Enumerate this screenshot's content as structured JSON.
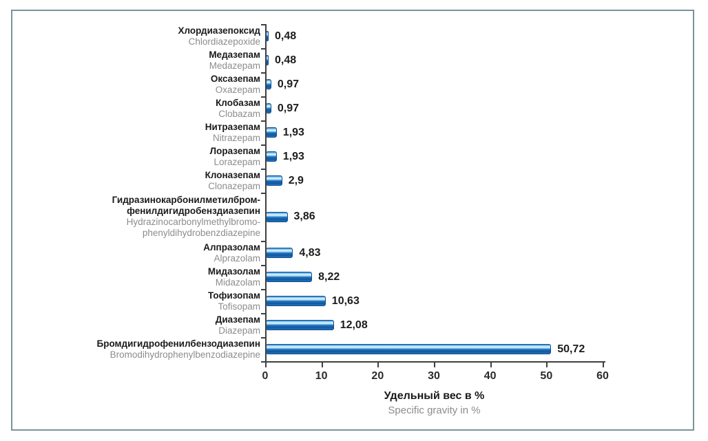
{
  "frame": {
    "border_color": "#78939b",
    "background": "#ffffff"
  },
  "axis": {
    "line_color": "#3f3f3f",
    "tick_label_color": "#2b2b2b"
  },
  "text_colors": {
    "label_ru": "#1a1a1a",
    "label_en": "#8c8c8c",
    "value": "#1c1c1c"
  },
  "chart_data": {
    "type": "bar",
    "orientation": "horizontal",
    "title": "",
    "xlabel_ru": "Удельный вес в %",
    "xlabel_en": "Specific gravity in %",
    "xlim": [
      0,
      60
    ],
    "xticks": [
      "0",
      "10",
      "20",
      "30",
      "40",
      "50",
      "60"
    ],
    "grid": false,
    "legend": null,
    "bar_color_main": "#1b67b3",
    "bar_color_highlight": "#e0f6ff",
    "bar_color_border": "#0a4a8e",
    "categories": [
      {
        "label_ru": [
          "Хлордиазепоксид"
        ],
        "label_en": [
          "Chlordiazepoxide"
        ],
        "value": 0.48,
        "value_display": "0,48"
      },
      {
        "label_ru": [
          "Медазепам"
        ],
        "label_en": [
          "Medazepam"
        ],
        "value": 0.48,
        "value_display": "0,48"
      },
      {
        "label_ru": [
          "Оксазепам"
        ],
        "label_en": [
          "Oxazepam"
        ],
        "value": 0.97,
        "value_display": "0,97"
      },
      {
        "label_ru": [
          "Клобазам"
        ],
        "label_en": [
          "Clobazam"
        ],
        "value": 0.97,
        "value_display": "0,97"
      },
      {
        "label_ru": [
          "Нитразепам"
        ],
        "label_en": [
          "Nitrazepam"
        ],
        "value": 1.93,
        "value_display": "1,93"
      },
      {
        "label_ru": [
          "Лоразепам"
        ],
        "label_en": [
          "Lorazepam"
        ],
        "value": 1.93,
        "value_display": "1,93"
      },
      {
        "label_ru": [
          "Клоназепам"
        ],
        "label_en": [
          "Clonazepam"
        ],
        "value": 2.9,
        "value_display": "2,9"
      },
      {
        "label_ru": [
          "Гидразинокарбонилметилбром-",
          "фенилдигидробенздиазепин"
        ],
        "label_en": [
          "Hydrazinocarbonylmethylbromo-",
          "phenyldihydrobenzdiazepine"
        ],
        "value": 3.86,
        "value_display": "3,86"
      },
      {
        "label_ru": [
          "Алпразолам"
        ],
        "label_en": [
          "Alprazolam"
        ],
        "value": 4.83,
        "value_display": "4,83"
      },
      {
        "label_ru": [
          "Мидазолам"
        ],
        "label_en": [
          "Midazolam"
        ],
        "value": 8.22,
        "value_display": "8,22"
      },
      {
        "label_ru": [
          "Тофизопам"
        ],
        "label_en": [
          "Tofisopam"
        ],
        "value": 10.63,
        "value_display": "10,63"
      },
      {
        "label_ru": [
          "Диазепам"
        ],
        "label_en": [
          "Diazepam"
        ],
        "value": 12.08,
        "value_display": "12,08"
      },
      {
        "label_ru": [
          "Бромдигидрофенилбензодиазепин"
        ],
        "label_en": [
          "Bromodihydrophenylbenzodiazepine"
        ],
        "value": 50.72,
        "value_display": "50,72"
      }
    ]
  }
}
